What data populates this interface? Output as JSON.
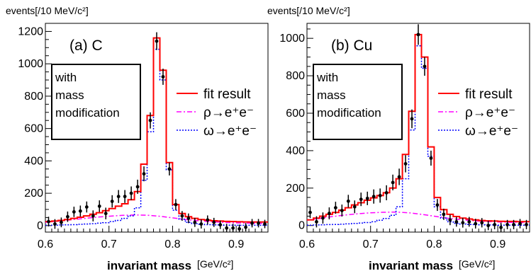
{
  "chart_data": [
    {
      "type": "histogram",
      "panel_label": "(a) C",
      "ylabel": "events[/10 MeV/c²]",
      "xlabel": "invariant mass",
      "xunit": "[GeV/c²]",
      "xlim": [
        0.6,
        0.95
      ],
      "ylim": [
        -40,
        1250
      ],
      "xticks": [
        "0.6",
        "0.7",
        "0.8",
        "0.9"
      ],
      "yticks": [
        "0",
        "200",
        "400",
        "600",
        "800",
        "1000",
        "1200"
      ],
      "box_text": [
        "with",
        "mass",
        "modification"
      ],
      "legend": {
        "fit": "fit result",
        "rho": "ρ→e⁺e⁻",
        "omega": "ω→e⁺e⁻"
      },
      "data_x": [
        0.605,
        0.615,
        0.625,
        0.635,
        0.645,
        0.655,
        0.665,
        0.675,
        0.685,
        0.695,
        0.705,
        0.715,
        0.725,
        0.735,
        0.745,
        0.755,
        0.765,
        0.775,
        0.785,
        0.795,
        0.805,
        0.815,
        0.825,
        0.835,
        0.845,
        0.855,
        0.865,
        0.875,
        0.885,
        0.895,
        0.905,
        0.915,
        0.925,
        0.935,
        0.945
      ],
      "data_y": [
        25,
        10,
        20,
        55,
        85,
        90,
        115,
        60,
        120,
        75,
        150,
        180,
        180,
        200,
        240,
        320,
        650,
        1140,
        920,
        350,
        130,
        60,
        45,
        20,
        10,
        35,
        20,
        5,
        -15,
        -15,
        -20,
        -10,
        15,
        15,
        10
      ],
      "data_err": [
        30,
        30,
        30,
        32,
        32,
        34,
        34,
        34,
        36,
        36,
        38,
        40,
        40,
        42,
        44,
        46,
        50,
        55,
        50,
        40,
        34,
        30,
        30,
        28,
        28,
        28,
        28,
        26,
        26,
        26,
        26,
        26,
        26,
        26,
        26
      ],
      "fit_edges": [
        0.6,
        0.61,
        0.62,
        0.63,
        0.64,
        0.65,
        0.66,
        0.67,
        0.68,
        0.69,
        0.7,
        0.71,
        0.72,
        0.73,
        0.74,
        0.75,
        0.76,
        0.77,
        0.78,
        0.79,
        0.8,
        0.81,
        0.82,
        0.83,
        0.84,
        0.85,
        0.86,
        0.87,
        0.88,
        0.89,
        0.9,
        0.91,
        0.92,
        0.93,
        0.94,
        0.95
      ],
      "fit_y": [
        25,
        28,
        32,
        38,
        45,
        52,
        60,
        70,
        80,
        92,
        105,
        120,
        135,
        160,
        210,
        380,
        680,
        1160,
        960,
        390,
        130,
        75,
        55,
        45,
        38,
        34,
        30,
        28,
        26,
        25,
        24,
        23,
        22,
        22,
        22
      ],
      "omega_y": [
        2,
        3,
        4,
        5,
        6,
        8,
        10,
        12,
        15,
        18,
        25,
        32,
        45,
        60,
        110,
        280,
        580,
        1090,
        900,
        345,
        95,
        40,
        20,
        12,
        8,
        6,
        5,
        4,
        3,
        3,
        2,
        2,
        2,
        2,
        2
      ],
      "rho_x": [
        0.6,
        0.62,
        0.64,
        0.66,
        0.68,
        0.7,
        0.72,
        0.74,
        0.76,
        0.78,
        0.8,
        0.82,
        0.84,
        0.86,
        0.88,
        0.9,
        0.92,
        0.95
      ],
      "rho_y": [
        20,
        28,
        36,
        44,
        52,
        58,
        63,
        66,
        64,
        58,
        48,
        38,
        30,
        24,
        20,
        17,
        15,
        13
      ]
    },
    {
      "type": "histogram",
      "panel_label": "(b) Cu",
      "ylabel": "events[/10 MeV/c²]",
      "xlabel": "invariant mass",
      "xunit": "[GeV/c²]",
      "xlim": [
        0.6,
        0.95
      ],
      "ylim": [
        -35,
        1080
      ],
      "xticks": [
        "0.6",
        "0.7",
        "0.8",
        "0.9"
      ],
      "yticks": [
        "0",
        "200",
        "400",
        "600",
        "800",
        "1000"
      ],
      "box_text": [
        "with",
        "mass",
        "modification"
      ],
      "legend": {
        "fit": "fit result",
        "rho": "ρ→e⁺e⁻",
        "omega": "ω→e⁺e⁻"
      },
      "data_x": [
        0.605,
        0.615,
        0.625,
        0.635,
        0.645,
        0.655,
        0.665,
        0.675,
        0.685,
        0.695,
        0.705,
        0.715,
        0.725,
        0.735,
        0.745,
        0.755,
        0.765,
        0.775,
        0.785,
        0.795,
        0.805,
        0.815,
        0.825,
        0.835,
        0.845,
        0.855,
        0.865,
        0.875,
        0.885,
        0.895,
        0.905,
        0.915,
        0.925,
        0.935,
        0.945
      ],
      "data_y": [
        70,
        20,
        40,
        65,
        95,
        80,
        130,
        100,
        140,
        145,
        155,
        160,
        175,
        230,
        260,
        330,
        570,
        1020,
        850,
        360,
        110,
        60,
        30,
        20,
        15,
        20,
        10,
        15,
        0,
        5,
        -10,
        5,
        5,
        10,
        5
      ],
      "data_err": [
        30,
        30,
        30,
        32,
        32,
        32,
        34,
        34,
        36,
        36,
        38,
        38,
        40,
        42,
        44,
        46,
        50,
        55,
        50,
        40,
        32,
        30,
        28,
        26,
        26,
        26,
        26,
        25,
        25,
        25,
        25,
        25,
        25,
        25,
        25
      ],
      "fit_edges": [
        0.6,
        0.61,
        0.62,
        0.63,
        0.64,
        0.65,
        0.66,
        0.67,
        0.68,
        0.69,
        0.7,
        0.71,
        0.72,
        0.73,
        0.74,
        0.75,
        0.76,
        0.77,
        0.78,
        0.79,
        0.8,
        0.81,
        0.82,
        0.83,
        0.84,
        0.85,
        0.86,
        0.87,
        0.88,
        0.89,
        0.9,
        0.91,
        0.92,
        0.93,
        0.94,
        0.95
      ],
      "fit_y": [
        30,
        40,
        50,
        60,
        70,
        82,
        95,
        110,
        122,
        135,
        148,
        160,
        175,
        200,
        250,
        380,
        610,
        1020,
        900,
        420,
        150,
        85,
        60,
        48,
        40,
        35,
        30,
        27,
        25,
        24,
        23,
        22,
        22,
        21,
        21
      ],
      "omega_y": [
        2,
        3,
        4,
        5,
        6,
        7,
        9,
        11,
        13,
        16,
        20,
        28,
        38,
        55,
        100,
        250,
        510,
        960,
        840,
        370,
        100,
        40,
        20,
        12,
        8,
        6,
        5,
        4,
        3,
        3,
        2,
        2,
        2,
        2,
        2
      ],
      "rho_x": [
        0.6,
        0.62,
        0.64,
        0.66,
        0.68,
        0.7,
        0.72,
        0.74,
        0.76,
        0.78,
        0.8,
        0.82,
        0.84,
        0.86,
        0.88,
        0.9,
        0.92,
        0.95
      ],
      "rho_y": [
        28,
        38,
        48,
        56,
        63,
        68,
        71,
        72,
        68,
        60,
        50,
        40,
        32,
        26,
        22,
        19,
        17,
        15
      ]
    }
  ],
  "colors": {
    "fit": "#ff0000",
    "rho": "#ff00ff",
    "omega": "#0000ff",
    "data": "#000000"
  }
}
